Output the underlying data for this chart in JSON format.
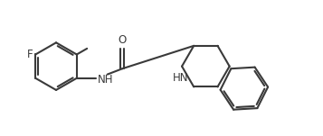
{
  "background_color": "#ffffff",
  "line_color": "#3a3a3a",
  "text_color": "#3a3a3a",
  "line_width": 1.5,
  "font_size": 8.5,
  "figsize": [
    3.57,
    1.51
  ],
  "dpi": 100,
  "xlim": [
    0,
    9.5
  ],
  "ylim": [
    0,
    4.0
  ]
}
